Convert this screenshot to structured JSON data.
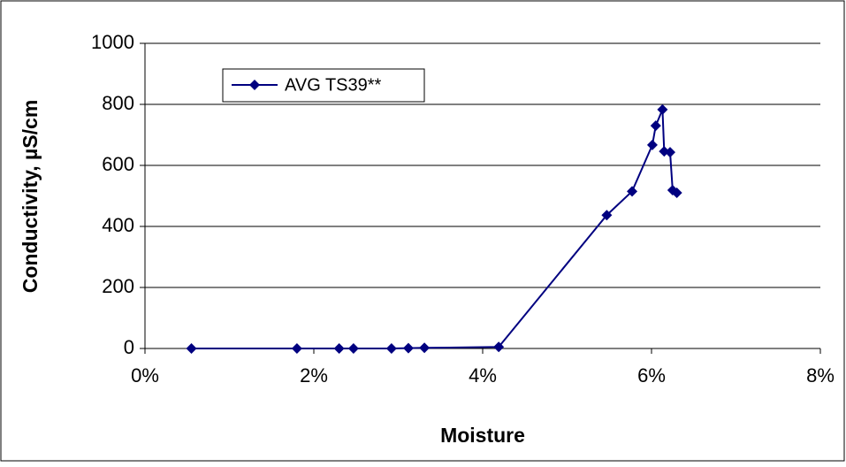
{
  "chart_data": {
    "type": "line",
    "x_label": "Moisture",
    "y_label": "Conductivity, µS/cm",
    "x": [
      0.55,
      1.8,
      2.3,
      2.47,
      2.92,
      3.12,
      3.31,
      4.19,
      5.47,
      5.77,
      6.01,
      6.05,
      6.13,
      6.15,
      6.22,
      6.25,
      6.3
    ],
    "series": [
      {
        "name": "AVG TS39**",
        "color": "#000080",
        "values": [
          0,
          0,
          0,
          0,
          0,
          1,
          2,
          5,
          437,
          515,
          667,
          730,
          783,
          646,
          643,
          519,
          510
        ]
      }
    ],
    "xlim": [
      0,
      8
    ],
    "xticks": [
      {
        "value": 0,
        "label": "0%"
      },
      {
        "value": 2,
        "label": "2%"
      },
      {
        "value": 4,
        "label": "4%"
      },
      {
        "value": 6,
        "label": "6%"
      },
      {
        "value": 8,
        "label": "8%"
      }
    ],
    "ylim": [
      0,
      1000
    ],
    "yticks": [
      0,
      200,
      400,
      600,
      800,
      1000
    ],
    "grid": true,
    "legend": "top-left"
  }
}
